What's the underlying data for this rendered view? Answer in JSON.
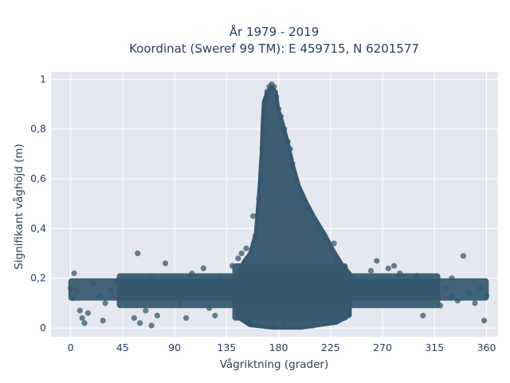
{
  "chart_data": {
    "type": "scatter",
    "title": "År 1979 - 2019",
    "subtitle": "Koordinat (Sweref 99 TM): E 459715, N 6201577",
    "xlabel": "Vågriktning (grader)",
    "ylabel": "Signifikant våghöjd (m)",
    "xlim": [
      -17,
      370
    ],
    "ylim": [
      -0.035,
      1.03
    ],
    "xticks": [
      0,
      45,
      90,
      135,
      180,
      225,
      270,
      315,
      360
    ],
    "xtick_labels": [
      "0",
      "45",
      "90",
      "135",
      "180",
      "225",
      "270",
      "315",
      "360"
    ],
    "yticks": [
      0,
      0.2,
      0.4,
      0.6,
      0.8,
      1
    ],
    "ytick_labels": [
      "0",
      "0,2",
      "0,4",
      "0,6",
      "0,8",
      "1"
    ],
    "grid": true,
    "marker_color": "#34586f",
    "plot_background": "#e5e8f0",
    "series": [
      {
        "points": [
          [
            0,
            0.16
          ],
          [
            2,
            0.12
          ],
          [
            3,
            0.22
          ],
          [
            5,
            0.15
          ],
          [
            8,
            0.07
          ],
          [
            10,
            0.04
          ],
          [
            12,
            0.02
          ],
          [
            15,
            0.06
          ],
          [
            20,
            0.18
          ],
          [
            25,
            0.13
          ],
          [
            28,
            0.03
          ],
          [
            35,
            0.15
          ],
          [
            40,
            0.19
          ],
          [
            45,
            0.14
          ],
          [
            50,
            0.12
          ],
          [
            55,
            0.04
          ],
          [
            58,
            0.3
          ],
          [
            60,
            0.02
          ],
          [
            65,
            0.07
          ],
          [
            70,
            0.01
          ],
          [
            75,
            0.05
          ],
          [
            80,
            0.15
          ],
          [
            82,
            0.26
          ],
          [
            90,
            0.16
          ],
          [
            95,
            0.1
          ],
          [
            100,
            0.04
          ],
          [
            105,
            0.22
          ],
          [
            110,
            0.13
          ],
          [
            115,
            0.24
          ],
          [
            120,
            0.15
          ],
          [
            125,
            0.05
          ],
          [
            130,
            0.2
          ],
          [
            135,
            0.17
          ],
          [
            140,
            0.25
          ],
          [
            145,
            0.28
          ],
          [
            148,
            0.3
          ],
          [
            150,
            0.15
          ],
          [
            152,
            0.32
          ],
          [
            155,
            0.25
          ],
          [
            158,
            0.45
          ],
          [
            160,
            0.37
          ],
          [
            162,
            0.2
          ],
          [
            163,
            0.52
          ],
          [
            165,
            0.6
          ],
          [
            166,
            0.72
          ],
          [
            167,
            0.8
          ],
          [
            168,
            0.87
          ],
          [
            169,
            0.92
          ],
          [
            170,
            0.95
          ],
          [
            172,
            0.97
          ],
          [
            174,
            0.98
          ],
          [
            176,
            0.97
          ],
          [
            178,
            0.93
          ],
          [
            180,
            0.88
          ],
          [
            182,
            0.85
          ],
          [
            185,
            0.8
          ],
          [
            188,
            0.75
          ],
          [
            190,
            0.72
          ],
          [
            192,
            0.66
          ],
          [
            195,
            0.6
          ],
          [
            198,
            0.56
          ],
          [
            200,
            0.52
          ],
          [
            205,
            0.48
          ],
          [
            210,
            0.44
          ],
          [
            215,
            0.4
          ],
          [
            220,
            0.37
          ],
          [
            225,
            0.32
          ],
          [
            228,
            0.34
          ],
          [
            230,
            0.28
          ],
          [
            235,
            0.24
          ],
          [
            240,
            0.22
          ],
          [
            245,
            0.2
          ],
          [
            250,
            0.18
          ],
          [
            255,
            0.17
          ],
          [
            260,
            0.23
          ],
          [
            265,
            0.27
          ],
          [
            270,
            0.16
          ],
          [
            275,
            0.24
          ],
          [
            280,
            0.25
          ],
          [
            285,
            0.22
          ],
          [
            290,
            0.18
          ],
          [
            295,
            0.17
          ],
          [
            300,
            0.21
          ],
          [
            305,
            0.05
          ],
          [
            310,
            0.15
          ],
          [
            315,
            0.18
          ],
          [
            320,
            0.09
          ],
          [
            325,
            0.16
          ],
          [
            330,
            0.13
          ],
          [
            335,
            0.11
          ],
          [
            340,
            0.29
          ],
          [
            345,
            0.14
          ],
          [
            350,
            0.1
          ],
          [
            355,
            0.16
          ],
          [
            358,
            0.03
          ],
          [
            360,
            0.13
          ],
          [
            175,
            0.01
          ],
          [
            185,
            0.02
          ],
          [
            195,
            0.03
          ],
          [
            210,
            0.01
          ],
          [
            165,
            0.04
          ],
          [
            155,
            0.02
          ],
          [
            225,
            0.05
          ],
          [
            240,
            0.08
          ],
          [
            120,
            0.08
          ],
          [
            95,
            0.18
          ],
          [
            300,
            0.12
          ],
          [
            330,
            0.2
          ],
          [
            30,
            0.1
          ],
          [
            70,
            0.2
          ]
        ]
      }
    ]
  }
}
